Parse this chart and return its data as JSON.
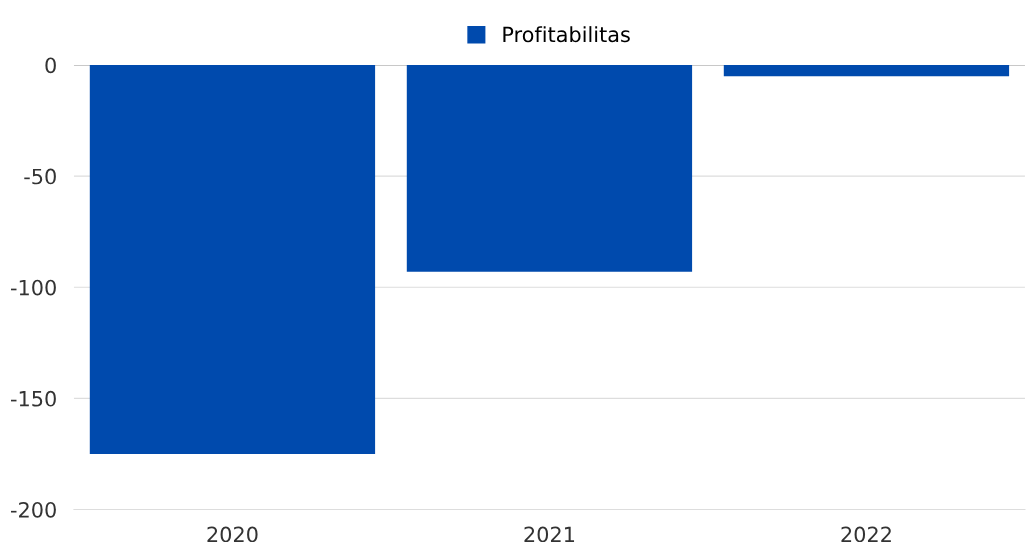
{
  "chart_data": {
    "type": "bar",
    "categories": [
      "2020",
      "2021",
      "2022"
    ],
    "series": [
      {
        "name": "Profitabilitas",
        "color": "#004aad",
        "values": [
          -175,
          -93,
          -5
        ]
      }
    ],
    "ylim": [
      -200,
      0
    ],
    "yticks": [
      -200,
      -150,
      -100,
      -50,
      0
    ],
    "grid": "y",
    "legend": "top"
  }
}
